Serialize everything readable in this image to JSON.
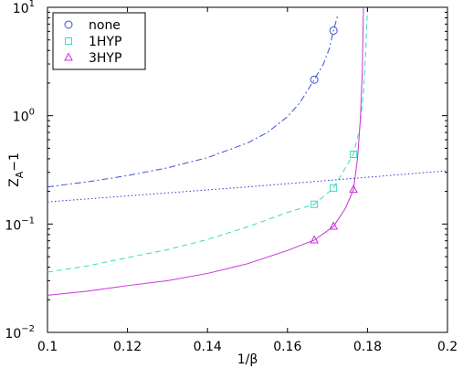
{
  "chart_data": {
    "type": "line",
    "title": "",
    "xlabel": "1/β",
    "ylabel_main": "Z",
    "ylabel_sub": "A",
    "ylabel_tail": "−1",
    "xlim": [
      0.1,
      0.2
    ],
    "ylim": [
      0.01,
      10
    ],
    "yscale": "log",
    "x_ticks": [
      {
        "value": 0.1,
        "label": "0.1"
      },
      {
        "value": 0.12,
        "label": "0.12"
      },
      {
        "value": 0.14,
        "label": "0.14"
      },
      {
        "value": 0.16,
        "label": "0.16"
      },
      {
        "value": 0.18,
        "label": "0.18"
      },
      {
        "value": 0.2,
        "label": "0.2"
      }
    ],
    "y_ticks": [
      {
        "value": 0.01,
        "base": "10",
        "exp": "−2"
      },
      {
        "value": 0.1,
        "base": "10",
        "exp": "−1"
      },
      {
        "value": 1,
        "base": "10",
        "exp": "0"
      },
      {
        "value": 10,
        "base": "10",
        "exp": "1"
      }
    ],
    "grid": false,
    "legend_position": "top-left",
    "series": [
      {
        "name": "none",
        "color": "#3b4fd8",
        "marker": "circle",
        "line_style": "dash-dot",
        "points": [
          [
            0.1667,
            2.15
          ],
          [
            0.1715,
            6.1
          ]
        ],
        "curve": [
          [
            0.1,
            0.22
          ],
          [
            0.11,
            0.245
          ],
          [
            0.12,
            0.28
          ],
          [
            0.13,
            0.33
          ],
          [
            0.14,
            0.41
          ],
          [
            0.15,
            0.56
          ],
          [
            0.155,
            0.7
          ],
          [
            0.16,
            0.98
          ],
          [
            0.163,
            1.3
          ],
          [
            0.1667,
            2.15
          ],
          [
            0.169,
            3.0
          ],
          [
            0.1705,
            4.2
          ],
          [
            0.1715,
            6.1
          ],
          [
            0.1725,
            8.3
          ]
        ]
      },
      {
        "name": "1HYP",
        "color": "#33ddc5",
        "marker": "square",
        "line_style": "dashed",
        "points": [
          [
            0.1667,
            0.152
          ],
          [
            0.1715,
            0.215
          ],
          [
            0.1765,
            0.44
          ]
        ],
        "curve": [
          [
            0.1,
            0.036
          ],
          [
            0.11,
            0.041
          ],
          [
            0.12,
            0.049
          ],
          [
            0.13,
            0.058
          ],
          [
            0.14,
            0.072
          ],
          [
            0.15,
            0.094
          ],
          [
            0.16,
            0.128
          ],
          [
            0.1667,
            0.152
          ],
          [
            0.1715,
            0.215
          ],
          [
            0.1765,
            0.44
          ],
          [
            0.178,
            0.75
          ],
          [
            0.179,
            1.6
          ],
          [
            0.1795,
            3.5
          ],
          [
            0.18,
            10
          ]
        ]
      },
      {
        "name": "3HYP",
        "color": "#c832d8",
        "marker": "triangle",
        "line_style": "solid",
        "points": [
          [
            0.1667,
            0.071
          ],
          [
            0.1715,
            0.095
          ],
          [
            0.1765,
            0.208
          ]
        ],
        "curve": [
          [
            0.1,
            0.022
          ],
          [
            0.11,
            0.024
          ],
          [
            0.12,
            0.027
          ],
          [
            0.13,
            0.03
          ],
          [
            0.14,
            0.035
          ],
          [
            0.15,
            0.043
          ],
          [
            0.16,
            0.057
          ],
          [
            0.1667,
            0.071
          ],
          [
            0.1715,
            0.095
          ],
          [
            0.1745,
            0.14
          ],
          [
            0.1765,
            0.208
          ],
          [
            0.1775,
            0.4
          ],
          [
            0.1782,
            0.9
          ],
          [
            0.1787,
            2.5
          ],
          [
            0.179,
            10
          ]
        ]
      },
      {
        "name": "",
        "color": "#2a35d8",
        "marker": "none",
        "line_style": "dotted",
        "points": [],
        "curve": [
          [
            0.1,
            0.16
          ],
          [
            0.15,
            0.22
          ],
          [
            0.2,
            0.31
          ]
        ]
      }
    ]
  }
}
